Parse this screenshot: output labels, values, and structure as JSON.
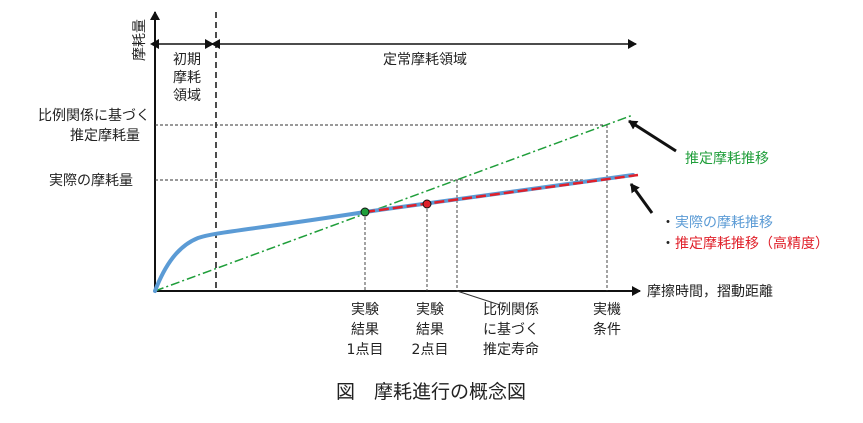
{
  "axes": {
    "y_label": "摩耗量",
    "x_label": "摩擦時間，摺動距離"
  },
  "regions": {
    "initial": [
      "初期",
      "摩耗",
      "領域"
    ],
    "steady": "定常摩耗領域"
  },
  "y_levels": {
    "estimated_by_proportion": [
      "比例関係に基づく",
      "推定摩耗量"
    ],
    "actual": "実際の摩耗量"
  },
  "x_markers": {
    "result_1": [
      "実験",
      "結果",
      "1点目"
    ],
    "result_2": [
      "実験",
      "結果",
      "2点目"
    ],
    "proportional_life": [
      "比例関係",
      "に基づく",
      "推定寿命"
    ],
    "actual_condition": [
      "実機",
      "条件"
    ]
  },
  "legend": {
    "green": "推定摩耗推移",
    "blue_bullet": "・",
    "blue": "実際の摩耗推移",
    "red_bullet": "・",
    "red": "推定摩耗推移（高精度）"
  },
  "caption": "図　摩耗進行の概念図",
  "colors": {
    "actual_curve": "#5b9bd5",
    "high_accuracy": "#e0202a",
    "proportional": "#1f9e3a",
    "point_1": "#1f9e3a",
    "point_2": "#e0202a",
    "axis": "#111111"
  }
}
